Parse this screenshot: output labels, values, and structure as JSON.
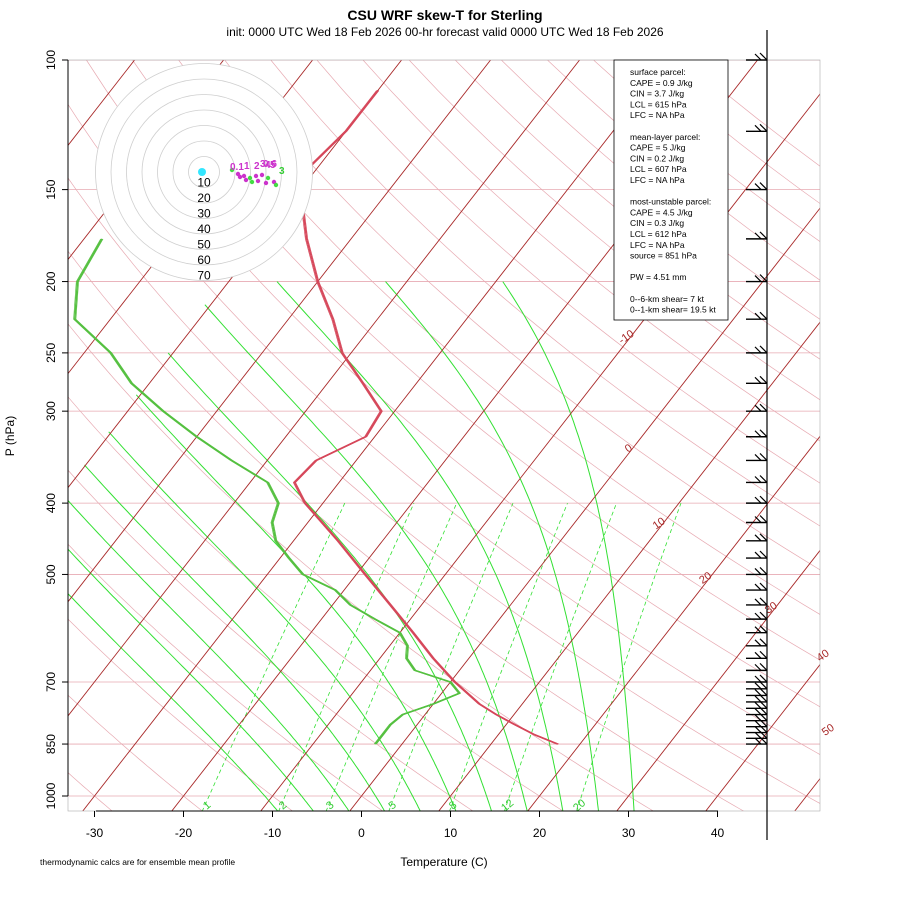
{
  "chart_data": {
    "type": "line",
    "title": "CSU WRF skew-T for Sterling",
    "subtitle": "init: 0000 UTC Wed 18 Feb 2026     00-hr forecast valid 0000 UTC Wed 18 Feb 2026",
    "xlabel": "Temperature (C)",
    "ylabel": "P (hPa)",
    "xlim": [
      -33,
      45
    ],
    "ylim": [
      1050,
      100
    ],
    "y_scale": "log",
    "skew": true,
    "x_ticks": [
      "-30",
      "-20",
      "-10",
      "0",
      "10",
      "20",
      "30",
      "40"
    ],
    "y_ticks": [
      "100",
      "150",
      "200",
      "250",
      "300",
      "400",
      "500",
      "700",
      "850",
      "1000"
    ],
    "isobar_levels": [
      100,
      150,
      200,
      250,
      300,
      400,
      500,
      700,
      850,
      1000
    ],
    "isotherm_labels": [
      "-10",
      "0",
      "10",
      "20",
      "30",
      "40",
      "50"
    ],
    "mixing_ratio_labels": [
      "1",
      "2",
      "3",
      "5",
      "8",
      "12",
      "20"
    ],
    "temperature_profile": {
      "p": [
        850,
        825,
        800,
        775,
        750,
        700,
        650,
        600,
        550,
        500,
        450,
        400,
        375,
        350,
        325,
        300,
        275,
        250,
        225,
        200,
        175,
        150,
        140,
        125,
        115,
        110
      ],
      "t": [
        17.5,
        14,
        11,
        8,
        5.2,
        0.5,
        -4,
        -8.5,
        -13.5,
        -19,
        -25,
        -32,
        -35,
        -34.5,
        -31,
        -31.5,
        -36,
        -41,
        -45,
        -50,
        -55,
        -60,
        -61,
        -60,
        -60,
        -60
      ]
    },
    "dewpoint_profile": {
      "p": [
        850,
        825,
        800,
        775,
        750,
        725,
        700,
        675,
        650,
        625,
        600,
        575,
        550,
        525,
        500,
        475,
        450,
        425,
        400,
        375,
        350,
        325,
        300,
        275,
        250,
        225,
        200,
        175
      ],
      "t": [
        -3,
        -3,
        -3,
        -2.5,
        0,
        2,
        0,
        -5,
        -7,
        -8,
        -10,
        -14,
        -18,
        -21,
        -26,
        -29,
        -32,
        -34,
        -35,
        -38,
        -44,
        -50,
        -56,
        -62,
        -67,
        -74,
        -77,
        -78
      ]
    },
    "hodograph_rings": [
      "10",
      "20",
      "30",
      "40",
      "50",
      "60",
      "70"
    ],
    "hodograph_labels": [
      "0.1",
      "1",
      "2",
      "3",
      "4",
      "5",
      "0.6",
      "3"
    ],
    "stats_lines": [
      "surface parcel:",
      "CAPE = 0.9 J/kg",
      "CIN = 3.7 J/kg",
      "LCL = 615 hPa",
      "LFC = NA hPa",
      "",
      "mean-layer parcel:",
      "CAPE = 5 J/kg",
      "CIN = 0.2 J/kg",
      "LCL = 607 hPa",
      "LFC = NA hPa",
      "",
      "most-unstable parcel:",
      "CAPE = 4.5 J/kg",
      "CIN = 0.3 J/kg",
      "LCL = 612 hPa",
      "LFC = NA hPa",
      "source = 851 hPa",
      "",
      "PW =  4.51 mm",
      "",
      "0--6-km shear= 7 kt",
      "0--1-km shear= 19.5 kt"
    ],
    "footnote": "thermodynamic calcs are for ensemble mean profile",
    "colors": {
      "temperature": "#d6475a",
      "dewpoint": "#55c040",
      "isotherm": "#a82828",
      "dry_adiabat": "#e7aab2",
      "isobar": "#e7aab2",
      "moist_adiabat": "#33e033",
      "mixing_ratio": "#33e033",
      "hodo_point": "#cc33cc",
      "hodo_center": "#33e6ff"
    }
  }
}
